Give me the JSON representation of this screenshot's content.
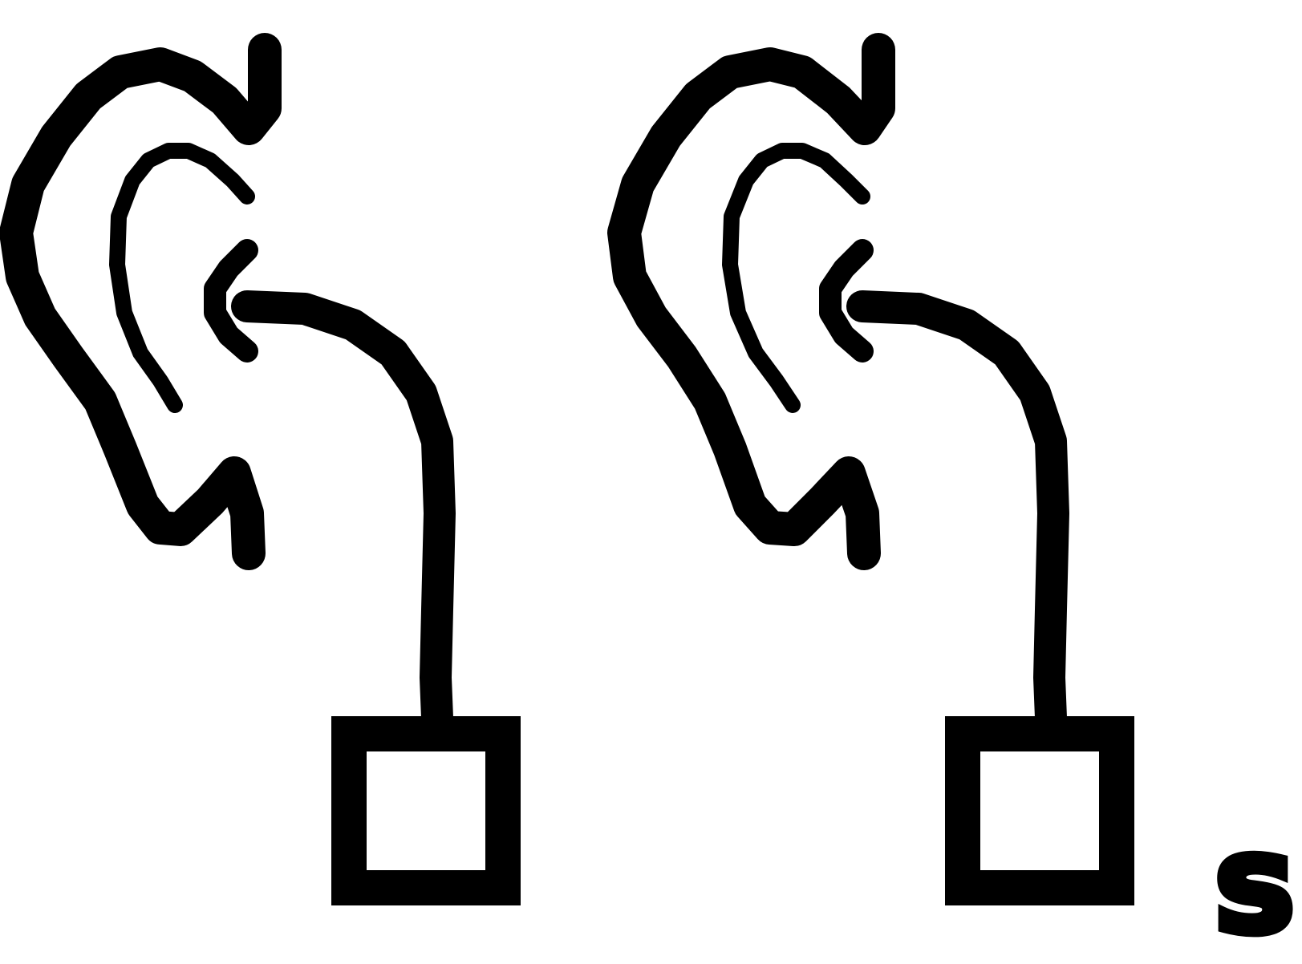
{
  "figure": {
    "panels": [
      {
        "icon": "ear-with-earphone-icon"
      },
      {
        "icon": "ear-with-earphone-icon"
      }
    ],
    "corner_label": "s"
  }
}
